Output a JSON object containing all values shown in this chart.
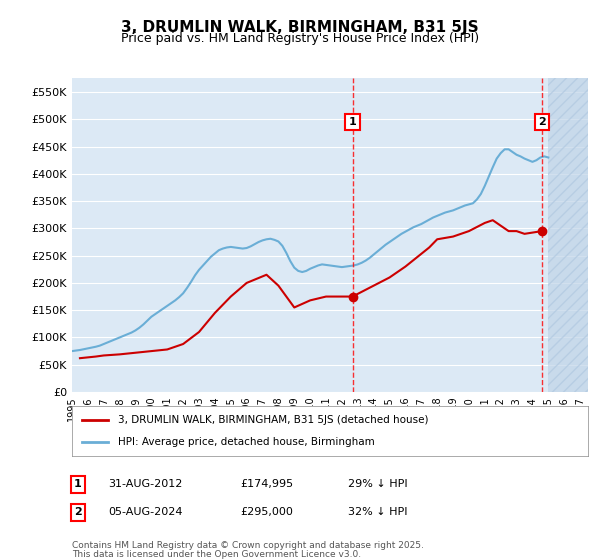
{
  "title": "3, DRUMLIN WALK, BIRMINGHAM, B31 5JS",
  "subtitle": "Price paid vs. HM Land Registry's House Price Index (HPI)",
  "ylabel": "",
  "xlim_start": 1995.0,
  "xlim_end": 2027.5,
  "ylim": [
    0,
    575000
  ],
  "yticks": [
    0,
    50000,
    100000,
    150000,
    200000,
    250000,
    300000,
    350000,
    400000,
    450000,
    500000,
    550000
  ],
  "ytick_labels": [
    "£0",
    "£50K",
    "£100K",
    "£150K",
    "£200K",
    "£250K",
    "£300K",
    "£350K",
    "£400K",
    "£450K",
    "£500K",
    "£550K"
  ],
  "background_color": "#dce9f5",
  "hatch_color": "#c0d4e8",
  "plot_bg": "#dce9f5",
  "grid_color": "#ffffff",
  "hpi_color": "#6aaed6",
  "price_color": "#cc0000",
  "annotation1_date": 2012.67,
  "annotation2_date": 2024.6,
  "annotation1_price": 174995,
  "annotation2_price": 295000,
  "annotation1_label": "1",
  "annotation2_label": "2",
  "legend_line1": "3, DRUMLIN WALK, BIRMINGHAM, B31 5JS (detached house)",
  "legend_line2": "HPI: Average price, detached house, Birmingham",
  "footer1": "Contains HM Land Registry data © Crown copyright and database right 2025.",
  "footer2": "This data is licensed under the Open Government Licence v3.0.",
  "table_row1": [
    "1",
    "31-AUG-2012",
    "£174,995",
    "29% ↓ HPI"
  ],
  "table_row2": [
    "2",
    "05-AUG-2024",
    "£295,000",
    "32% ↓ HPI"
  ],
  "hpi_data_x": [
    1995.0,
    1995.25,
    1995.5,
    1995.75,
    1996.0,
    1996.25,
    1996.5,
    1996.75,
    1997.0,
    1997.25,
    1997.5,
    1997.75,
    1998.0,
    1998.25,
    1998.5,
    1998.75,
    1999.0,
    1999.25,
    1999.5,
    1999.75,
    2000.0,
    2000.25,
    2000.5,
    2000.75,
    2001.0,
    2001.25,
    2001.5,
    2001.75,
    2002.0,
    2002.25,
    2002.5,
    2002.75,
    2003.0,
    2003.25,
    2003.5,
    2003.75,
    2004.0,
    2004.25,
    2004.5,
    2004.75,
    2005.0,
    2005.25,
    2005.5,
    2005.75,
    2006.0,
    2006.25,
    2006.5,
    2006.75,
    2007.0,
    2007.25,
    2007.5,
    2007.75,
    2008.0,
    2008.25,
    2008.5,
    2008.75,
    2009.0,
    2009.25,
    2009.5,
    2009.75,
    2010.0,
    2010.25,
    2010.5,
    2010.75,
    2011.0,
    2011.25,
    2011.5,
    2011.75,
    2012.0,
    2012.25,
    2012.5,
    2012.75,
    2013.0,
    2013.25,
    2013.5,
    2013.75,
    2014.0,
    2014.25,
    2014.5,
    2014.75,
    2015.0,
    2015.25,
    2015.5,
    2015.75,
    2016.0,
    2016.25,
    2016.5,
    2016.75,
    2017.0,
    2017.25,
    2017.5,
    2017.75,
    2018.0,
    2018.25,
    2018.5,
    2018.75,
    2019.0,
    2019.25,
    2019.5,
    2019.75,
    2020.0,
    2020.25,
    2020.5,
    2020.75,
    2021.0,
    2021.25,
    2021.5,
    2021.75,
    2022.0,
    2022.25,
    2022.5,
    2022.75,
    2023.0,
    2023.25,
    2023.5,
    2023.75,
    2024.0,
    2024.25,
    2024.5,
    2024.75,
    2025.0
  ],
  "hpi_data_y": [
    75000,
    76000,
    77000,
    78500,
    80000,
    81500,
    83000,
    85000,
    88000,
    91000,
    94000,
    97000,
    100000,
    103000,
    106000,
    109000,
    113000,
    118000,
    124000,
    131000,
    138000,
    143000,
    148000,
    153000,
    158000,
    163000,
    168000,
    174000,
    181000,
    191000,
    202000,
    214000,
    224000,
    232000,
    240000,
    248000,
    254000,
    260000,
    263000,
    265000,
    266000,
    265000,
    264000,
    263000,
    264000,
    267000,
    271000,
    275000,
    278000,
    280000,
    281000,
    279000,
    276000,
    268000,
    255000,
    240000,
    228000,
    222000,
    220000,
    222000,
    226000,
    229000,
    232000,
    234000,
    233000,
    232000,
    231000,
    230000,
    229000,
    230000,
    231000,
    232000,
    234000,
    237000,
    241000,
    246000,
    252000,
    258000,
    264000,
    270000,
    275000,
    280000,
    285000,
    290000,
    294000,
    298000,
    302000,
    305000,
    308000,
    312000,
    316000,
    320000,
    323000,
    326000,
    329000,
    331000,
    333000,
    336000,
    339000,
    342000,
    344000,
    346000,
    353000,
    363000,
    378000,
    395000,
    412000,
    428000,
    438000,
    445000,
    445000,
    440000,
    435000,
    432000,
    428000,
    425000,
    422000,
    425000,
    430000,
    432000,
    430000
  ],
  "price_data_x": [
    1995.5,
    1996.5,
    1997.0,
    1997.5,
    1998.0,
    1999.0,
    2000.0,
    2001.0,
    2002.0,
    2003.0,
    2004.0,
    2005.0,
    2006.0,
    2007.25,
    2008.0,
    2009.0,
    2010.0,
    2011.0,
    2012.67,
    2014.0,
    2015.0,
    2016.0,
    2017.5,
    2018.0,
    2019.0,
    2020.0,
    2021.0,
    2021.5,
    2022.0,
    2022.5,
    2023.0,
    2023.5,
    2024.6
  ],
  "price_data_y": [
    62000,
    65000,
    67000,
    68000,
    69000,
    72000,
    75000,
    78000,
    88000,
    110000,
    145000,
    175000,
    200000,
    215000,
    195000,
    155000,
    168000,
    175000,
    174995,
    195000,
    210000,
    230000,
    265000,
    280000,
    285000,
    295000,
    310000,
    315000,
    305000,
    295000,
    295000,
    290000,
    295000
  ]
}
